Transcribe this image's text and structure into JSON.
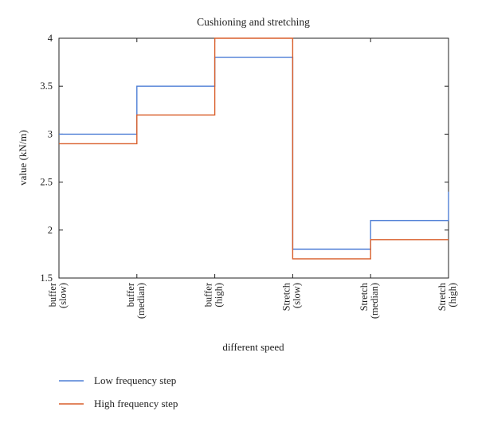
{
  "chart_data": {
    "type": "line",
    "subtype": "step",
    "title": "Cushioning and stretching",
    "xlabel": "different speed",
    "ylabel": "value (kN/m)",
    "categories": [
      [
        "buffer",
        "(slow)"
      ],
      [
        "buffer",
        "(median)"
      ],
      [
        "buffer",
        "(high)"
      ],
      [
        "Stretch",
        "(slow)"
      ],
      [
        "Stretch",
        "(median)"
      ],
      [
        "Stretch",
        "(high)"
      ]
    ],
    "ylim": [
      1.5,
      4
    ],
    "yticks": [
      "1.5",
      "2",
      "2.5",
      "3",
      "3.5",
      "4"
    ],
    "grid": false,
    "legend_position": "bottom-left",
    "series": [
      {
        "name": "Low frequency step",
        "color": "#4f7fd6",
        "values": [
          3.0,
          3.5,
          3.8,
          1.8,
          2.1,
          2.4
        ]
      },
      {
        "name": "High frequency step",
        "color": "#d95f2b",
        "values": [
          2.9,
          3.2,
          4.0,
          1.7,
          1.9,
          1.9
        ]
      }
    ]
  }
}
